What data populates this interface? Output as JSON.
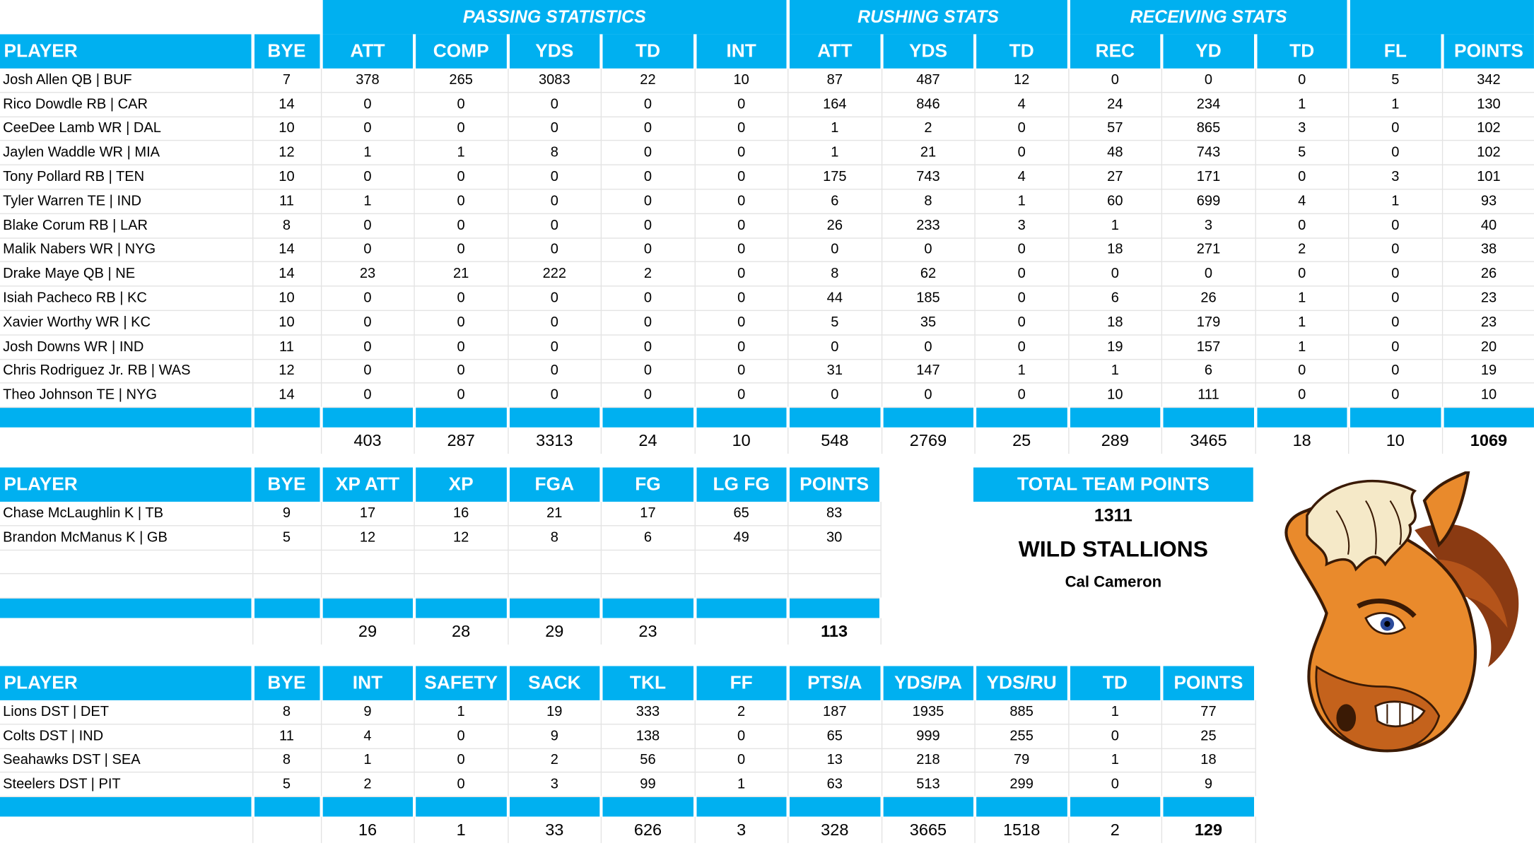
{
  "offense": {
    "groups": {
      "passing": "PASSING STATISTICS",
      "rushing": "RUSHING STATS",
      "receiving": "RECEIVING STATS"
    },
    "headers": [
      "PLAYER",
      "BYE",
      "ATT",
      "COMP",
      "YDS",
      "TD",
      "INT",
      "ATT",
      "YDS",
      "TD",
      "REC",
      "YD",
      "TD",
      "FL",
      "POINTS"
    ],
    "rows": [
      [
        "Josh Allen QB | BUF",
        "7",
        "378",
        "265",
        "3083",
        "22",
        "10",
        "87",
        "487",
        "12",
        "0",
        "0",
        "0",
        "5",
        "342"
      ],
      [
        "Rico Dowdle RB | CAR",
        "14",
        "0",
        "0",
        "0",
        "0",
        "0",
        "164",
        "846",
        "4",
        "24",
        "234",
        "1",
        "1",
        "130"
      ],
      [
        "CeeDee Lamb WR | DAL",
        "10",
        "0",
        "0",
        "0",
        "0",
        "0",
        "1",
        "2",
        "0",
        "57",
        "865",
        "3",
        "0",
        "102"
      ],
      [
        "Jaylen Waddle WR | MIA",
        "12",
        "1",
        "1",
        "8",
        "0",
        "0",
        "1",
        "21",
        "0",
        "48",
        "743",
        "5",
        "0",
        "102"
      ],
      [
        "Tony Pollard RB | TEN",
        "10",
        "0",
        "0",
        "0",
        "0",
        "0",
        "175",
        "743",
        "4",
        "27",
        "171",
        "0",
        "3",
        "101"
      ],
      [
        "Tyler Warren TE | IND",
        "11",
        "1",
        "0",
        "0",
        "0",
        "0",
        "6",
        "8",
        "1",
        "60",
        "699",
        "4",
        "1",
        "93"
      ],
      [
        "Blake Corum RB | LAR",
        "8",
        "0",
        "0",
        "0",
        "0",
        "0",
        "26",
        "233",
        "3",
        "1",
        "3",
        "0",
        "0",
        "40"
      ],
      [
        "Malik Nabers WR | NYG",
        "14",
        "0",
        "0",
        "0",
        "0",
        "0",
        "0",
        "0",
        "0",
        "18",
        "271",
        "2",
        "0",
        "38"
      ],
      [
        "Drake Maye QB | NE",
        "14",
        "23",
        "21",
        "222",
        "2",
        "0",
        "8",
        "62",
        "0",
        "0",
        "0",
        "0",
        "0",
        "26"
      ],
      [
        "Isiah Pacheco RB | KC",
        "10",
        "0",
        "0",
        "0",
        "0",
        "0",
        "44",
        "185",
        "0",
        "6",
        "26",
        "1",
        "0",
        "23"
      ],
      [
        "Xavier Worthy WR | KC",
        "10",
        "0",
        "0",
        "0",
        "0",
        "0",
        "5",
        "35",
        "0",
        "18",
        "179",
        "1",
        "0",
        "23"
      ],
      [
        "Josh Downs WR | IND",
        "11",
        "0",
        "0",
        "0",
        "0",
        "0",
        "0",
        "0",
        "0",
        "19",
        "157",
        "1",
        "0",
        "20"
      ],
      [
        "Chris Rodriguez Jr. RB | WAS",
        "12",
        "0",
        "0",
        "0",
        "0",
        "0",
        "31",
        "147",
        "1",
        "1",
        "6",
        "0",
        "0",
        "19"
      ],
      [
        "Theo Johnson TE | NYG",
        "14",
        "0",
        "0",
        "0",
        "0",
        "0",
        "0",
        "0",
        "0",
        "10",
        "111",
        "0",
        "0",
        "10"
      ]
    ],
    "totals": [
      "",
      "",
      "403",
      "287",
      "3313",
      "24",
      "10",
      "548",
      "2769",
      "25",
      "289",
      "3465",
      "18",
      "10",
      "1069"
    ]
  },
  "kickers": {
    "headers": [
      "PLAYER",
      "BYE",
      "XP ATT",
      "XP",
      "FGA",
      "FG",
      "LG FG",
      "POINTS"
    ],
    "rows": [
      [
        "Chase McLaughlin K | TB",
        "9",
        "17",
        "16",
        "21",
        "17",
        "65",
        "83"
      ],
      [
        "Brandon McManus K | GB",
        "5",
        "12",
        "12",
        "8",
        "6",
        "49",
        "30"
      ]
    ],
    "totals": [
      "",
      "",
      "29",
      "28",
      "29",
      "23",
      "",
      "113"
    ]
  },
  "defense": {
    "headers": [
      "PLAYER",
      "BYE",
      "INT",
      "SAFETY",
      "SACK",
      "TKL",
      "FF",
      "PTS/A",
      "YDS/PA",
      "YDS/RU",
      "TD",
      "POINTS"
    ],
    "rows": [
      [
        "Lions DST | DET",
        "8",
        "9",
        "1",
        "19",
        "333",
        "2",
        "187",
        "1935",
        "885",
        "1",
        "77"
      ],
      [
        "Colts DST | IND",
        "11",
        "4",
        "0",
        "9",
        "138",
        "0",
        "65",
        "999",
        "255",
        "0",
        "25"
      ],
      [
        "Seahawks DST | SEA",
        "8",
        "1",
        "0",
        "2",
        "56",
        "0",
        "13",
        "218",
        "79",
        "1",
        "18"
      ],
      [
        "Steelers DST | PIT",
        "5",
        "2",
        "0",
        "3",
        "99",
        "1",
        "63",
        "513",
        "299",
        "0",
        "9"
      ]
    ],
    "totals": [
      "",
      "",
      "16",
      "1",
      "33",
      "626",
      "3",
      "328",
      "3665",
      "1518",
      "2",
      "129"
    ]
  },
  "team": {
    "total_label": "TOTAL TEAM POINTS",
    "total_points": "1311",
    "name": "WILD STALLIONS",
    "owner": "Cal Cameron",
    "logo_icon": "stallion-mascot-icon"
  },
  "colors": {
    "accent": "#00b0f0",
    "header_text": "#ffffff"
  }
}
